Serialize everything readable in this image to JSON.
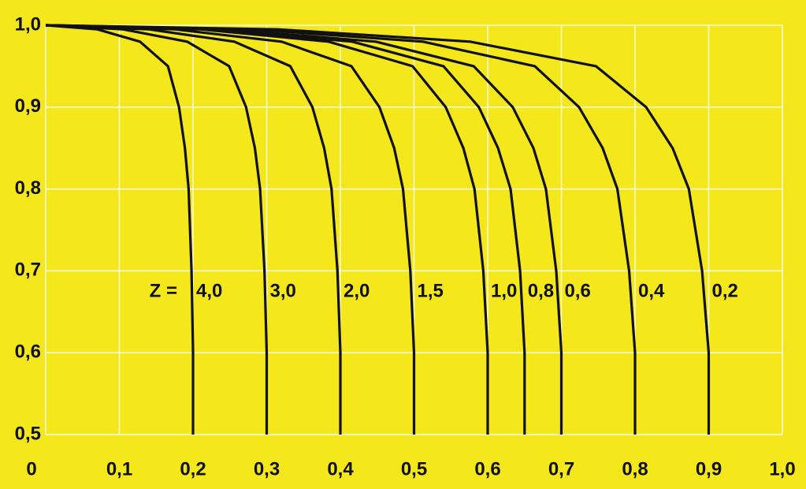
{
  "chart_data": {
    "type": "line",
    "annotation": "Z =",
    "xlim": [
      0,
      1.0
    ],
    "ylim": [
      0.5,
      1.0
    ],
    "xticks": [
      0,
      {
        "value": 0.1,
        "label": "0,1"
      },
      {
        "value": 0.2,
        "label": "0,2"
      },
      {
        "value": 0.3,
        "label": "0,3"
      },
      {
        "value": 0.4,
        "label": "0,4"
      },
      {
        "value": 0.5,
        "label": "0,5"
      },
      {
        "value": 0.6,
        "label": "0,6"
      },
      {
        "value": 0.7,
        "label": "0,7"
      },
      {
        "value": 0.8,
        "label": "0,8"
      },
      {
        "value": 0.9,
        "label": "0,9"
      },
      {
        "value": 1.0,
        "label": "1,0"
      }
    ],
    "yticks": [
      {
        "value": 0.5,
        "label": "0,5"
      },
      {
        "value": 0.6,
        "label": "0,6"
      },
      {
        "value": 0.7,
        "label": "0,7"
      },
      {
        "value": 0.8,
        "label": "0,8"
      },
      {
        "value": 0.9,
        "label": "0,9"
      },
      {
        "value": 1.0,
        "label": "1,0"
      }
    ],
    "grid": true,
    "series": [
      {
        "name": "4,0",
        "color": "#111111",
        "x": [
          0,
          0.07,
          0.128,
          0.166,
          0.181,
          0.189,
          0.194,
          0.198,
          0.2,
          0.2
        ],
        "values": [
          1.0,
          0.995,
          0.98,
          0.95,
          0.9,
          0.85,
          0.8,
          0.7,
          0.6,
          0.5
        ]
      },
      {
        "name": "3,0",
        "color": "#111111",
        "x": [
          0,
          0.105,
          0.192,
          0.249,
          0.272,
          0.284,
          0.291,
          0.297,
          0.3,
          0.3
        ],
        "values": [
          1.0,
          0.995,
          0.98,
          0.95,
          0.9,
          0.85,
          0.8,
          0.7,
          0.6,
          0.5
        ]
      },
      {
        "name": "2,0",
        "color": "#111111",
        "x": [
          0,
          0.14,
          0.256,
          0.332,
          0.362,
          0.378,
          0.388,
          0.396,
          0.4,
          0.4
        ],
        "values": [
          1.0,
          0.995,
          0.98,
          0.95,
          0.9,
          0.85,
          0.8,
          0.7,
          0.6,
          0.5
        ]
      },
      {
        "name": "1,5",
        "color": "#111111",
        "x": [
          0,
          0.175,
          0.32,
          0.415,
          0.453,
          0.473,
          0.485,
          0.495,
          0.5,
          0.5
        ],
        "values": [
          1.0,
          0.995,
          0.98,
          0.95,
          0.9,
          0.85,
          0.8,
          0.7,
          0.6,
          0.5
        ]
      },
      {
        "name": "1,0",
        "color": "#111111",
        "x": [
          0,
          0.21,
          0.384,
          0.498,
          0.543,
          0.567,
          0.582,
          0.594,
          0.6,
          0.6
        ],
        "values": [
          1.0,
          0.995,
          0.98,
          0.95,
          0.9,
          0.85,
          0.8,
          0.7,
          0.6,
          0.5
        ]
      },
      {
        "name": "0,8",
        "color": "#111111",
        "x": [
          0,
          0.228,
          0.416,
          0.54,
          0.588,
          0.614,
          0.631,
          0.644,
          0.65,
          0.65
        ],
        "values": [
          1.0,
          0.995,
          0.98,
          0.95,
          0.9,
          0.85,
          0.8,
          0.7,
          0.6,
          0.5
        ]
      },
      {
        "name": "0,6",
        "color": "#111111",
        "x": [
          0,
          0.245,
          0.448,
          0.581,
          0.634,
          0.662,
          0.679,
          0.693,
          0.7,
          0.7
        ],
        "values": [
          1.0,
          0.995,
          0.98,
          0.95,
          0.9,
          0.85,
          0.8,
          0.7,
          0.6,
          0.5
        ]
      },
      {
        "name": "0,4",
        "color": "#111111",
        "x": [
          0,
          0.28,
          0.512,
          0.664,
          0.724,
          0.756,
          0.776,
          0.792,
          0.8,
          0.8
        ],
        "values": [
          1.0,
          0.995,
          0.98,
          0.95,
          0.9,
          0.85,
          0.8,
          0.7,
          0.6,
          0.5
        ]
      },
      {
        "name": "0,2",
        "color": "#111111",
        "x": [
          0,
          0.315,
          0.576,
          0.747,
          0.815,
          0.851,
          0.873,
          0.891,
          0.9,
          0.9
        ],
        "values": [
          1.0,
          0.995,
          0.98,
          0.95,
          0.9,
          0.85,
          0.8,
          0.7,
          0.6,
          0.5
        ]
      }
    ]
  }
}
